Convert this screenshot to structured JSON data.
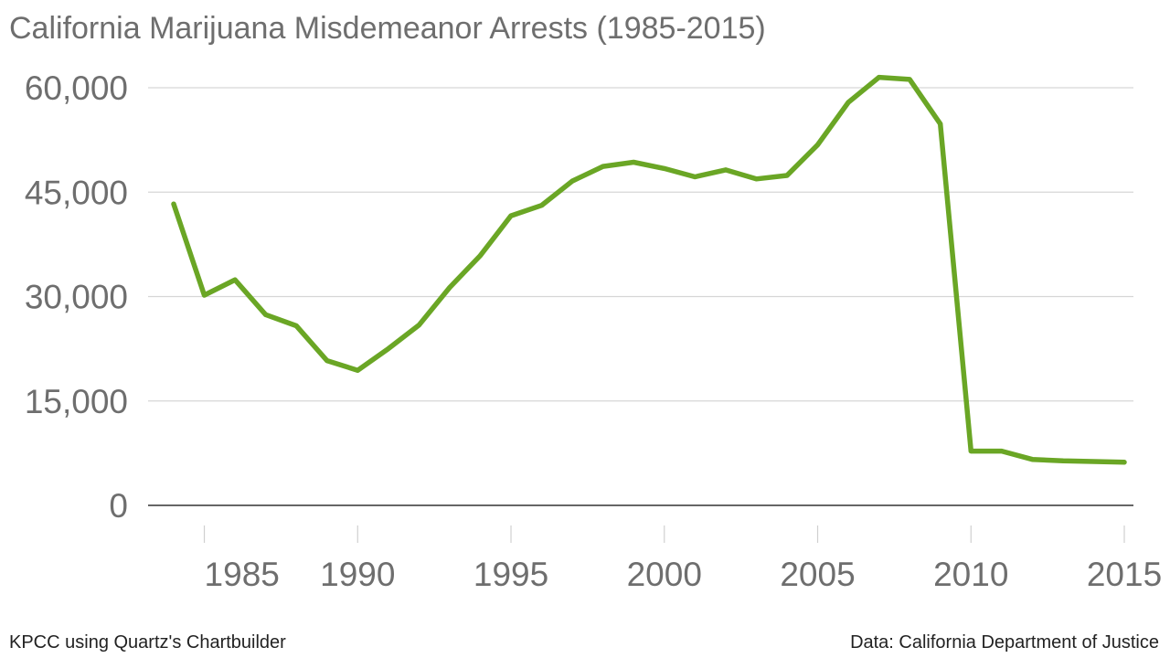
{
  "chart_data": {
    "type": "line",
    "title": "California Marijuana Misdemeanor Arrests (1985-2015)",
    "xlabel": "",
    "ylabel": "",
    "xlim": [
      1984,
      2015
    ],
    "ylim": [
      0,
      60000
    ],
    "yticks": [
      0,
      15000,
      30000,
      45000,
      60000
    ],
    "ytick_labels": [
      "0",
      "15,000",
      "30,000",
      "45,000",
      "60,000"
    ],
    "xticks": [
      1985,
      1990,
      1995,
      2000,
      2005,
      2010,
      2015
    ],
    "xtick_labels": [
      "1985",
      "1990",
      "1995",
      "2000",
      "2005",
      "2010",
      "2015"
    ],
    "grid": true,
    "legend": "none",
    "series": [
      {
        "color": "#6aa625",
        "x": [
          1984,
          1985,
          1986,
          1987,
          1988,
          1989,
          1990,
          1991,
          1992,
          1993,
          1994,
          1995,
          1996,
          1997,
          1998,
          1999,
          2000,
          2001,
          2002,
          2003,
          2004,
          2005,
          2006,
          2007,
          2008,
          2009,
          2010,
          2011,
          2012,
          2013,
          2014,
          2015
        ],
        "y": [
          43300,
          30200,
          32400,
          27400,
          25800,
          20800,
          19400,
          22500,
          25900,
          31300,
          35900,
          41600,
          43100,
          46600,
          48700,
          49300,
          48400,
          47200,
          48200,
          46900,
          47400,
          51800,
          57900,
          61500,
          61200,
          54800,
          7800,
          7800,
          6600,
          6400,
          6300,
          6200
        ]
      }
    ]
  },
  "footer": {
    "source_left": "KPCC using Quartz's Chartbuilder",
    "source_right": "Data: California Department of Justice"
  }
}
